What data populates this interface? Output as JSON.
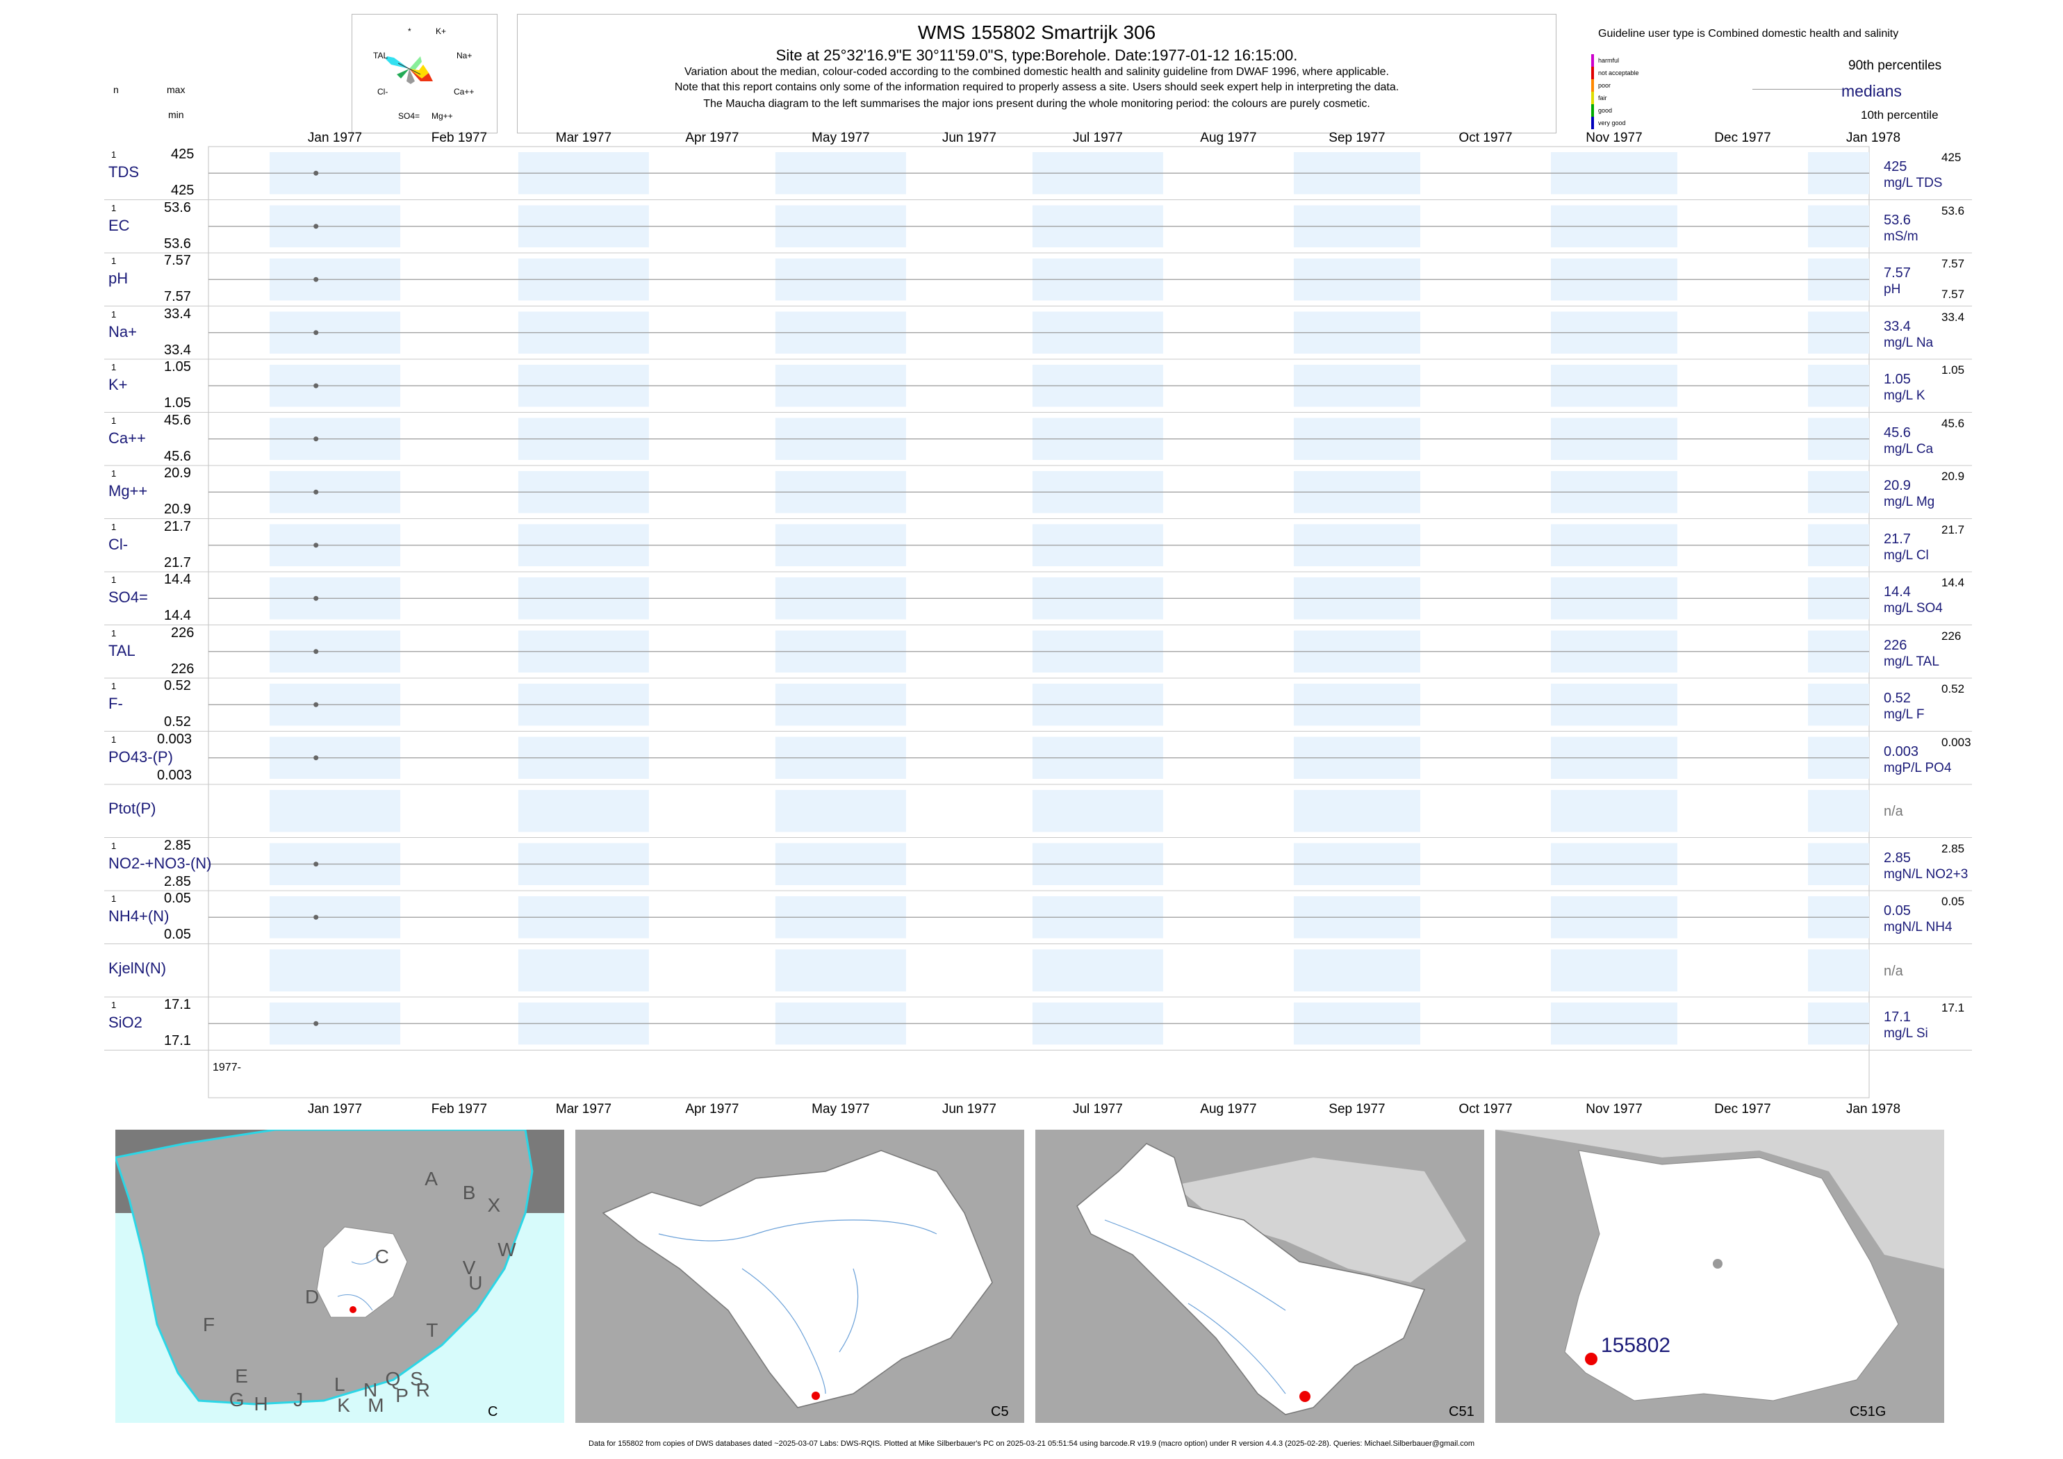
{
  "header": {
    "title": "WMS 155802  Smartrijk 306",
    "site_line": "Site at 25°32'16.9\"E 30°11'59.0\"S, type:Borehole. Date:1977-01-12 16:15:00.",
    "notes": [
      "Variation about the median,  colour-coded according to the combined domestic health and salinity guideline from DWAF 1996, where applicable.",
      "Note that this report contains only some of the information required to properly assess a site. Users should seek expert help in interpreting the data.",
      "The Maucha diagram to the left summarises the major ions present during the whole monitoring period: the colours are purely cosmetic."
    ]
  },
  "left_header": {
    "n": "n",
    "max": "max",
    "min": "min"
  },
  "maucha": {
    "labels": [
      "*",
      "K+",
      "TAL",
      "Na+",
      "Cl-",
      "Ca++",
      "SO4=",
      "Mg++"
    ]
  },
  "legend": {
    "guideline": "Guideline user type is Combined domestic health and salinity",
    "classes": [
      "harmful",
      "not acceptable",
      "poor",
      "fair",
      "good",
      "very good"
    ],
    "class_colors": [
      "#cc00cc",
      "#e00000",
      "#ff8800",
      "#dddd00",
      "#00aa00",
      "#0000bb"
    ],
    "p90": "90th percentiles",
    "medians": "medians",
    "p10": "10th percentile"
  },
  "months": [
    "Jan 1977",
    "Feb 1977",
    "Mar 1977",
    "Apr 1977",
    "May 1977",
    "Jun 1977",
    "Jul 1977",
    "Aug 1977",
    "Sep 1977",
    "Oct 1977",
    "Nov 1977",
    "Dec 1977",
    "Jan 1978"
  ],
  "year_label": "1977-",
  "chart_data": {
    "type": "scatter",
    "x_range": [
      "1977-01-01",
      "1978-01-31"
    ],
    "sample_date": "1977-01-12",
    "series": [
      {
        "name": "TDS",
        "n": "1",
        "max": "425",
        "min": "425",
        "median": "425",
        "unit": "mg/L TDS",
        "p90": "425",
        "p10": "",
        "value": 425
      },
      {
        "name": "EC",
        "n": "1",
        "max": "53.6",
        "min": "53.6",
        "median": "53.6",
        "unit": "mS/m",
        "p90": "53.6",
        "p10": "",
        "value": 53.6
      },
      {
        "name": "pH",
        "n": "1",
        "max": "7.57",
        "min": "7.57",
        "median": "7.57",
        "unit": "pH",
        "p90": "7.57",
        "p10": "7.57",
        "value": 7.57
      },
      {
        "name": "Na+",
        "n": "1",
        "max": "33.4",
        "min": "33.4",
        "median": "33.4",
        "unit": "mg/L Na",
        "p90": "33.4",
        "p10": "",
        "value": 33.4
      },
      {
        "name": "K+",
        "n": "1",
        "max": "1.05",
        "min": "1.05",
        "median": "1.05",
        "unit": "mg/L K",
        "p90": "1.05",
        "p10": "",
        "value": 1.05
      },
      {
        "name": "Ca++",
        "n": "1",
        "max": "45.6",
        "min": "45.6",
        "median": "45.6",
        "unit": "mg/L Ca",
        "p90": "45.6",
        "p10": "",
        "value": 45.6
      },
      {
        "name": "Mg++",
        "n": "1",
        "max": "20.9",
        "min": "20.9",
        "median": "20.9",
        "unit": "mg/L Mg",
        "p90": "20.9",
        "p10": "",
        "value": 20.9
      },
      {
        "name": "Cl-",
        "n": "1",
        "max": "21.7",
        "min": "21.7",
        "median": "21.7",
        "unit": "mg/L Cl",
        "p90": "21.7",
        "p10": "",
        "value": 21.7
      },
      {
        "name": "SO4=",
        "n": "1",
        "max": "14.4",
        "min": "14.4",
        "median": "14.4",
        "unit": "mg/L SO4",
        "p90": "14.4",
        "p10": "",
        "value": 14.4
      },
      {
        "name": "TAL",
        "n": "1",
        "max": "226",
        "min": "226",
        "median": "226",
        "unit": "mg/L TAL",
        "p90": "226",
        "p10": "",
        "value": 226
      },
      {
        "name": "F-",
        "n": "1",
        "max": "0.52",
        "min": "0.52",
        "median": "0.52",
        "unit": "mg/L F",
        "p90": "0.52",
        "p10": "",
        "value": 0.52
      },
      {
        "name": "PO43-(P)",
        "n": "1",
        "max": "0.003",
        "min": "0.003",
        "median": "0.003",
        "unit": "mgP/L PO4",
        "p90": "0.003",
        "p10": "",
        "value": 0.003
      },
      {
        "name": "Ptot(P)",
        "n": "",
        "max": "",
        "min": "",
        "median": "n/a",
        "unit": "",
        "p90": "",
        "p10": "",
        "value": null
      },
      {
        "name": "NO2-+NO3-(N)",
        "n": "1",
        "max": "2.85",
        "min": "2.85",
        "median": "2.85",
        "unit": "mgN/L NO2+3",
        "p90": "2.85",
        "p10": "",
        "value": 2.85
      },
      {
        "name": "NH4+(N)",
        "n": "1",
        "max": "0.05",
        "min": "0.05",
        "median": "0.05",
        "unit": "mgN/L NH4",
        "p90": "0.05",
        "p10": "",
        "value": 0.05
      },
      {
        "name": "KjelN(N)",
        "n": "",
        "max": "",
        "min": "",
        "median": "n/a",
        "unit": "",
        "p90": "",
        "p10": "",
        "value": null
      },
      {
        "name": "SiO2",
        "n": "1",
        "max": "17.1",
        "min": "17.1",
        "median": "17.1",
        "unit": "mg/L Si",
        "p90": "17.1",
        "p10": "",
        "value": 17.1
      }
    ]
  },
  "maps": [
    {
      "caption": "C",
      "region_letters": [
        "A",
        "B",
        "X",
        "W",
        "C",
        "V",
        "D",
        "U",
        "T",
        "F",
        "E",
        "G",
        "H",
        "J",
        "K",
        "L",
        "N",
        "M",
        "Q",
        "P",
        "S",
        "R"
      ]
    },
    {
      "caption": "C5"
    },
    {
      "caption": "C51"
    },
    {
      "caption": "C51G",
      "site_label": "155802"
    }
  ],
  "colors": {
    "navy": "#1a1a78",
    "band": "#e8f3fd",
    "site": "#ee0000",
    "ocean": "#d7fbfb",
    "land": "#a8a8a8"
  },
  "footer": "Data for 155802 from copies of DWS databases dated ~2025-03-07 Labs: DWS-RQIS. Plotted at Mike Silberbauer's PC on 2025-03-21 05:51:54 using barcode.R v19.9 (macro option) under R version 4.4.3 (2025-02-28). Queries: Michael.Silberbauer@gmail.com"
}
